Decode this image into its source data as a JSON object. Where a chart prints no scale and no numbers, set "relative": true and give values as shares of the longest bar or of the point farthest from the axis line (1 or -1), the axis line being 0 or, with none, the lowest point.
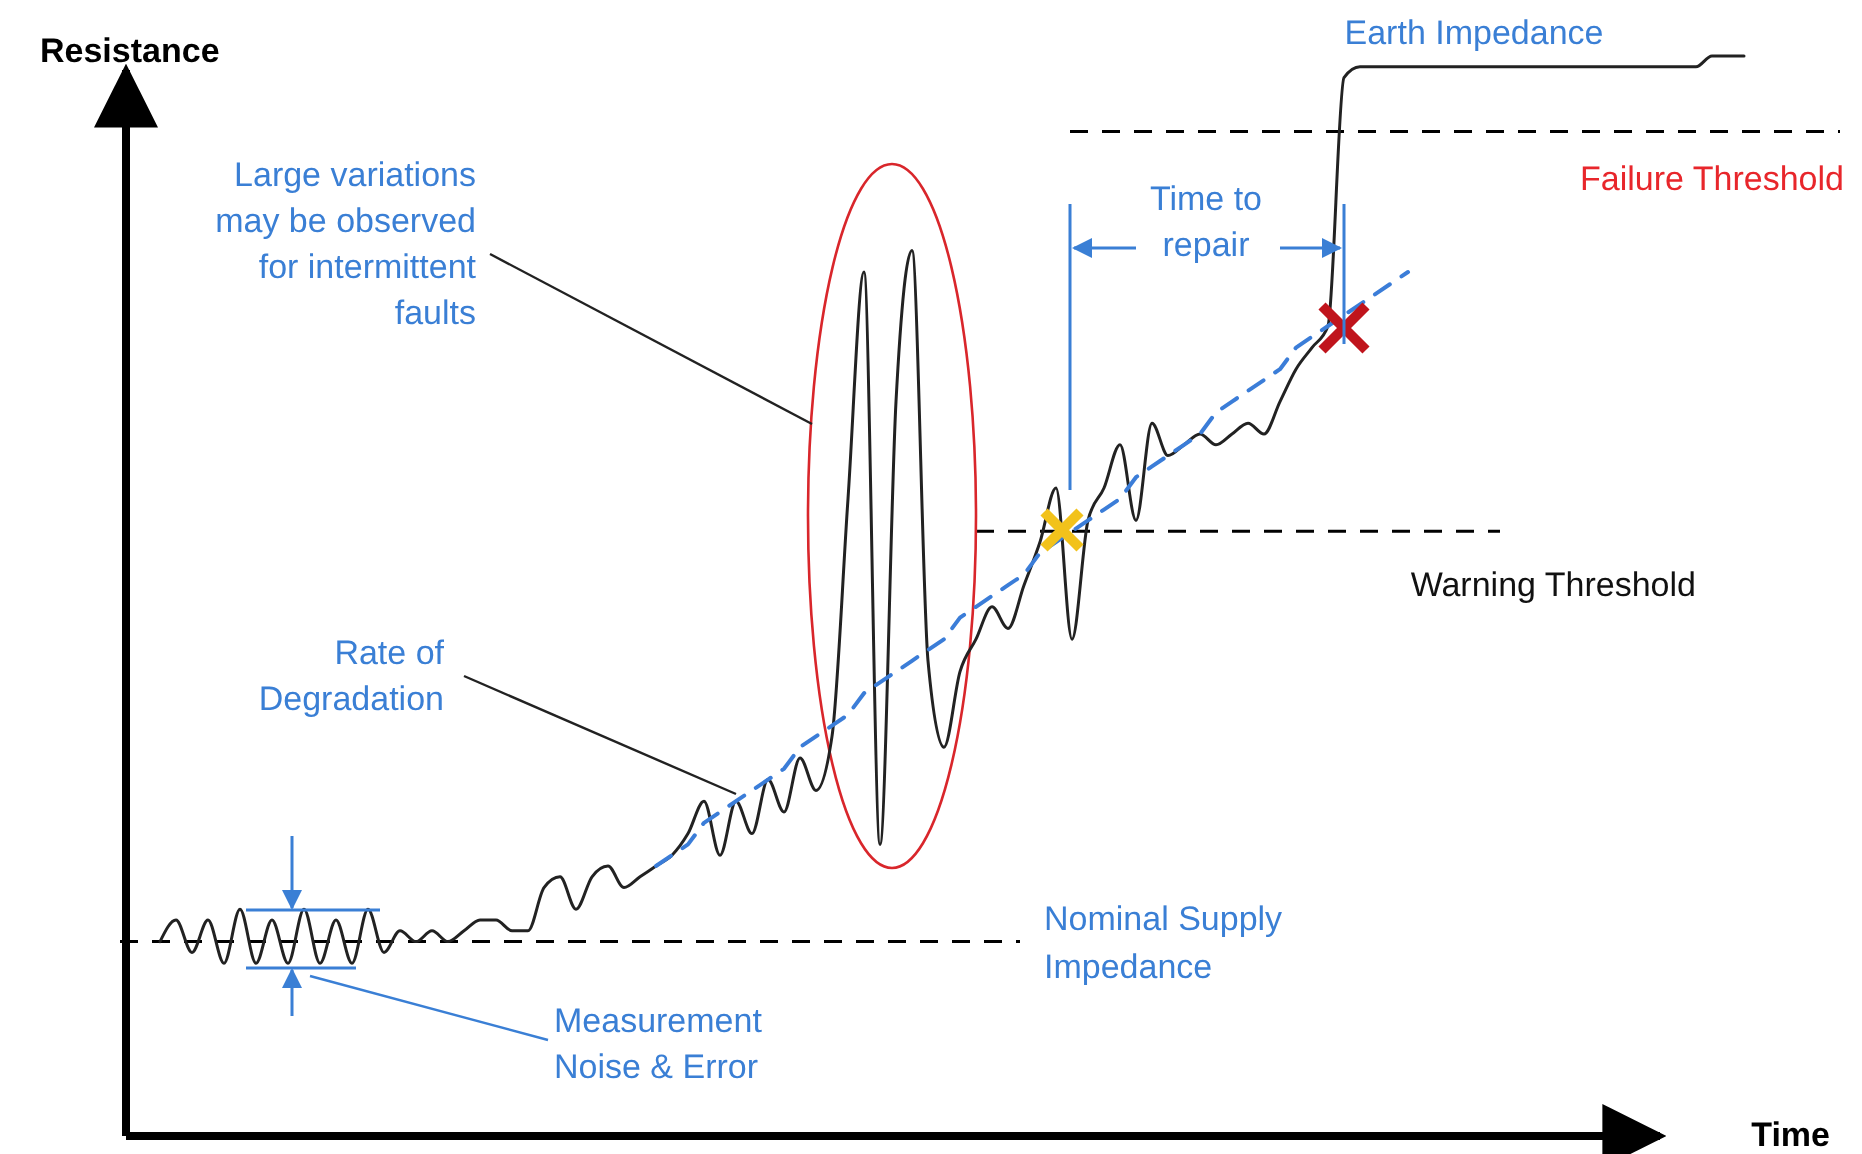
{
  "chart_data": {
    "type": "line",
    "relative": true,
    "xlabel": "Time",
    "ylabel": "Resistance",
    "categories": [
      null,
      null,
      null,
      null,
      null,
      null,
      null,
      null,
      null,
      null,
      null,
      null,
      null,
      null,
      null,
      null,
      null,
      null,
      null,
      null,
      null,
      null,
      null,
      null,
      null,
      null,
      null,
      null,
      null,
      null,
      null,
      null,
      null,
      null,
      null,
      null,
      null,
      null,
      null,
      null,
      null,
      null,
      null,
      null,
      null,
      null,
      null,
      null,
      null,
      null,
      null,
      null,
      null,
      null,
      null,
      null,
      null,
      null,
      null,
      null,
      null,
      null,
      null,
      null,
      null,
      null,
      null,
      null,
      null,
      null,
      null,
      null,
      null,
      null,
      null,
      null,
      null,
      null,
      null,
      null,
      null,
      null,
      null,
      null,
      null,
      null,
      null,
      null,
      null,
      null,
      null,
      null,
      null,
      null,
      null,
      null,
      null,
      null,
      null,
      null
    ],
    "series": [
      {
        "color": "#222222",
        "values": [
          0.18,
          0.2,
          0.17,
          0.2,
          0.16,
          0.21,
          0.16,
          0.2,
          0.16,
          0.21,
          0.16,
          0.2,
          0.16,
          0.21,
          0.17,
          0.19,
          0.18,
          0.19,
          0.18,
          0.19,
          0.2,
          0.2,
          0.19,
          0.19,
          0.23,
          0.24,
          0.21,
          0.24,
          0.25,
          0.23,
          0.24,
          0.25,
          0.26,
          0.28,
          0.31,
          0.26,
          0.31,
          0.28,
          0.33,
          0.3,
          0.35,
          0.32,
          0.37,
          0.59,
          0.8,
          0.27,
          0.68,
          0.82,
          0.44,
          0.36,
          0.43,
          0.46,
          0.49,
          0.47,
          0.51,
          0.55,
          0.6,
          0.46,
          0.57,
          0.6,
          0.64,
          0.57,
          0.66,
          0.63,
          0.64,
          0.65,
          0.64,
          0.65,
          0.66,
          0.65,
          0.68,
          0.71,
          0.73,
          0.75,
          0.98,
          0.99,
          0.99,
          0.99,
          0.99,
          0.99,
          0.99,
          0.99,
          0.99,
          0.99,
          0.99,
          0.99,
          0.99,
          0.99,
          0.99,
          0.99,
          0.99,
          0.99,
          0.99,
          0.99,
          0.99,
          0.99,
          0.99,
          1,
          1,
          1
        ]
      },
      {
        "color": "#3b7dd8",
        "line_style": "dashed",
        "values": [
          null,
          null,
          null,
          null,
          null,
          null,
          null,
          null,
          null,
          null,
          null,
          null,
          null,
          null,
          null,
          null,
          null,
          null,
          null,
          null,
          null,
          null,
          null,
          null,
          null,
          null,
          null,
          null,
          null,
          null,
          null,
          0.25,
          0.26,
          0.27,
          0.29,
          0.3,
          0.31,
          0.32,
          0.33,
          0.34,
          0.36,
          0.37,
          0.38,
          0.39,
          0.41,
          0.42,
          0.43,
          0.44,
          0.45,
          0.46,
          0.48,
          0.49,
          0.5,
          0.51,
          0.52,
          0.54,
          0.55,
          0.56,
          0.57,
          0.58,
          0.59,
          0.61,
          0.62,
          0.63,
          0.64,
          0.65,
          0.67,
          0.68,
          0.69,
          0.7,
          0.71,
          0.73,
          0.74,
          0.75,
          0.76,
          0.77,
          0.78,
          0.79,
          0.8,
          null,
          null,
          null,
          null,
          null,
          null,
          null,
          null,
          null,
          null,
          null,
          null,
          null,
          null,
          null,
          null,
          null,
          null,
          null,
          null,
          null
        ]
      }
    ],
    "ref_lines": [
      {
        "axis": "y",
        "value": 0.18,
        "label": "Nominal Supply Impedance",
        "line_style": "dashed"
      },
      {
        "axis": "y",
        "value": 0.56,
        "label": "Warning Threshold",
        "line_style": "dashed"
      },
      {
        "axis": "y",
        "value": 0.93,
        "label": "Failure Threshold",
        "line_style": "dashed"
      }
    ],
    "annotations": [
      "Large variations may be observed for intermittent faults",
      "Rate of Degradation",
      "Measurement Noise & Error",
      "Time to repair",
      "Earth Impedance"
    ]
  }
}
